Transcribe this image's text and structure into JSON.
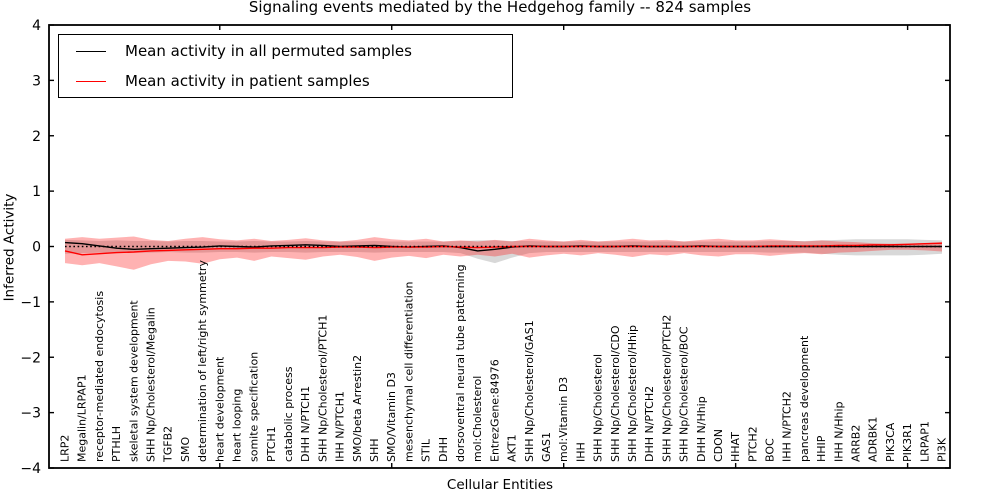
{
  "figure": {
    "title": "Signaling events mediated by the Hedgehog family -- 824 samples"
  },
  "chart_data": {
    "type": "line",
    "title": "Signaling events mediated by the Hedgehog family -- 824 samples",
    "xlabel": "Cellular Entities",
    "ylabel": "Inferred Activity",
    "ylim": [
      -4,
      4
    ],
    "yticks": [
      4,
      3,
      2,
      1,
      0,
      -1,
      -2,
      -3,
      -4
    ],
    "x_major_tick_indices": [
      9,
      19,
      29,
      39,
      49
    ],
    "grid": false,
    "legend_position": "upper left",
    "legend": [
      {
        "label": "Mean activity in all permuted samples",
        "color": "#000000"
      },
      {
        "label": "Mean activity in patient samples",
        "color": "#ff0000"
      }
    ],
    "categories": [
      "LRP2",
      "Megalin/LRPAP1",
      "receptor-mediated endocytosis",
      "PTHLH",
      "skeletal system development",
      "SHH Np/Cholesterol/Megalin",
      "TGFB2",
      "SMO",
      "determination of left/right symmetry",
      "heart development",
      "heart looping",
      "somite specification",
      "PTCH1",
      "catabolic process",
      "DHH N/PTCH1",
      "SHH Np/Cholesterol/PTCH1",
      "IHH N/PTCH1",
      "SMO/beta Arrestin2",
      "SHH",
      "SMO/Vitamin D3",
      "mesenchymal cell differentiation",
      "STIL",
      "DHH",
      "dorsoventral neural tube patterning",
      "mol:Cholesterol",
      "EntrezGene:84976",
      "AKT1",
      "SHH Np/Cholesterol/GAS1",
      "GAS1",
      "mol:Vitamin D3",
      "IHH",
      "SHH Np/Cholesterol",
      "SHH Np/Cholesterol/CDO",
      "SHH Np/Cholesterol/Hhip",
      "DHH N/PTCH2",
      "SHH Np/Cholesterol/PTCH2",
      "SHH Np/Cholesterol/BOC",
      "DHH N/Hhip",
      "CDON",
      "HHAT",
      "PTCH2",
      "BOC",
      "IHH N/PTCH2",
      "pancreas development",
      "HHIP",
      "IHH N/Hhip",
      "ARRB2",
      "ADRBK1",
      "PIK3CA",
      "PIK3R1",
      "LRPAP1",
      "PI3K"
    ],
    "series": [
      {
        "name": "Mean activity in all permuted samples",
        "color": "#000000",
        "values": [
          0.07,
          0.05,
          0.01,
          -0.03,
          -0.05,
          -0.04,
          -0.03,
          -0.02,
          -0.01,
          0.01,
          0.0,
          -0.01,
          0.01,
          0.02,
          0.03,
          0.02,
          0.0,
          0.01,
          0.02,
          0.0,
          -0.01,
          0.0,
          0.01,
          -0.02,
          -0.08,
          -0.05,
          -0.01,
          0.01,
          0.0,
          0.0,
          0.01,
          0.0,
          0.0,
          0.01,
          0.0,
          0.0,
          0.0,
          0.01,
          0.0,
          0.0,
          0.0,
          0.0,
          0.0,
          0.0,
          0.0,
          0.0,
          0.0,
          0.0,
          0.0,
          0.0,
          0.0,
          0.0
        ]
      },
      {
        "name": "Mean activity in patient samples",
        "color": "#ff0000",
        "values": [
          -0.08,
          -0.15,
          -0.13,
          -0.11,
          -0.1,
          -0.08,
          -0.07,
          -0.06,
          -0.05,
          -0.04,
          -0.04,
          -0.03,
          -0.03,
          -0.02,
          -0.02,
          -0.02,
          -0.01,
          -0.01,
          -0.02,
          -0.01,
          -0.01,
          -0.01,
          0.0,
          -0.01,
          -0.02,
          -0.01,
          0.0,
          0.0,
          0.0,
          0.0,
          0.0,
          0.0,
          0.0,
          0.0,
          0.0,
          0.0,
          0.0,
          0.0,
          0.0,
          0.0,
          0.0,
          0.01,
          0.01,
          0.01,
          0.01,
          0.02,
          0.02,
          0.03,
          0.03,
          0.04,
          0.05,
          0.06
        ]
      }
    ],
    "bands": [
      {
        "name": "permuted-samples-range",
        "color": "#bebebe",
        "opacity": 0.6,
        "upper": [
          0.12,
          0.11,
          0.1,
          0.11,
          0.1,
          0.1,
          0.09,
          0.1,
          0.1,
          0.09,
          0.09,
          0.1,
          0.09,
          0.09,
          0.1,
          0.09,
          0.09,
          0.09,
          0.1,
          0.09,
          0.09,
          0.09,
          0.09,
          0.1,
          0.11,
          0.11,
          0.1,
          0.1,
          0.09,
          0.09,
          0.09,
          0.09,
          0.09,
          0.09,
          0.09,
          0.09,
          0.09,
          0.09,
          0.09,
          0.09,
          0.09,
          0.1,
          0.1,
          0.1,
          0.11,
          0.12,
          0.13,
          0.13,
          0.13,
          0.13,
          0.12,
          0.11
        ],
        "lower": [
          -0.13,
          -0.12,
          -0.11,
          -0.12,
          -0.11,
          -0.11,
          -0.1,
          -0.11,
          -0.11,
          -0.1,
          -0.1,
          -0.11,
          -0.1,
          -0.1,
          -0.11,
          -0.1,
          -0.1,
          -0.1,
          -0.11,
          -0.1,
          -0.1,
          -0.1,
          -0.1,
          -0.12,
          -0.22,
          -0.3,
          -0.2,
          -0.12,
          -0.1,
          -0.1,
          -0.1,
          -0.1,
          -0.1,
          -0.1,
          -0.1,
          -0.1,
          -0.1,
          -0.1,
          -0.1,
          -0.1,
          -0.1,
          -0.11,
          -0.11,
          -0.11,
          -0.13,
          -0.15,
          -0.16,
          -0.16,
          -0.16,
          -0.16,
          -0.15,
          -0.13
        ]
      },
      {
        "name": "patient-samples-range",
        "color": "#ff0000",
        "opacity": 0.3,
        "upper": [
          0.14,
          0.17,
          0.14,
          0.16,
          0.18,
          0.12,
          0.1,
          0.14,
          0.17,
          0.13,
          0.11,
          0.14,
          0.1,
          0.12,
          0.15,
          0.11,
          0.09,
          0.12,
          0.17,
          0.13,
          0.11,
          0.14,
          0.09,
          0.11,
          0.09,
          0.12,
          0.09,
          0.14,
          0.11,
          0.09,
          0.12,
          0.09,
          0.11,
          0.14,
          0.11,
          0.12,
          0.09,
          0.12,
          0.14,
          0.11,
          0.11,
          0.13,
          0.11,
          0.09,
          0.11,
          0.09,
          0.08,
          0.06,
          0.05,
          0.05,
          0.06,
          0.08
        ],
        "lower": [
          -0.3,
          -0.34,
          -0.3,
          -0.36,
          -0.42,
          -0.32,
          -0.26,
          -0.27,
          -0.31,
          -0.23,
          -0.2,
          -0.26,
          -0.18,
          -0.21,
          -0.24,
          -0.18,
          -0.15,
          -0.19,
          -0.26,
          -0.2,
          -0.17,
          -0.21,
          -0.15,
          -0.18,
          -0.15,
          -0.18,
          -0.13,
          -0.2,
          -0.16,
          -0.13,
          -0.16,
          -0.12,
          -0.15,
          -0.19,
          -0.14,
          -0.16,
          -0.12,
          -0.16,
          -0.18,
          -0.14,
          -0.14,
          -0.17,
          -0.14,
          -0.12,
          -0.14,
          -0.11,
          -0.1,
          -0.08,
          -0.06,
          -0.06,
          -0.07,
          -0.09
        ]
      }
    ],
    "zero_line": {
      "y": 0,
      "style": "dotted",
      "color": "#000000"
    }
  }
}
